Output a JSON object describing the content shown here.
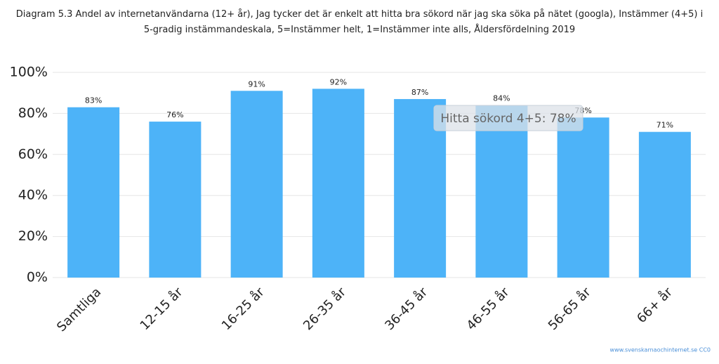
{
  "chart_data": {
    "type": "bar",
    "title": "Diagram 5.3 Andel av internetanvändarna (12+ år), Jag tycker det är enkelt att hitta bra sökord när jag ska söka på nätet (googla), Instämmer (4+5) i 5-gradig instämmandeskala, 5=Instämmer helt, 1=Instämmer inte alls, Åldersfördelning 2019",
    "categories": [
      "Samtliga",
      "12-15 år",
      "16-25 år",
      "26-35 år",
      "36-45 år",
      "46-55 år",
      "56-65 år",
      "66+ år"
    ],
    "series": [
      {
        "name": "Hitta sökord 4+5",
        "color": "#4db3f8",
        "values": [
          83,
          76,
          91,
          92,
          87,
          84,
          78,
          71
        ],
        "value_labels": [
          "83%",
          "76%",
          "91%",
          "92%",
          "87%",
          "84%",
          "78%",
          "71%"
        ]
      }
    ],
    "ylim": [
      0,
      100
    ],
    "yticks": [
      {
        "value": 0,
        "label": "0%"
      },
      {
        "value": 20,
        "label": "20%"
      },
      {
        "value": 40,
        "label": "40%"
      },
      {
        "value": 60,
        "label": "60%"
      },
      {
        "value": 80,
        "label": "80%"
      },
      {
        "value": 100,
        "label": "100%"
      }
    ],
    "grid": true,
    "tooltip": "Hitta sökord 4+5: 78%",
    "source": "www.svenskarnaochinternet.se CC0"
  }
}
